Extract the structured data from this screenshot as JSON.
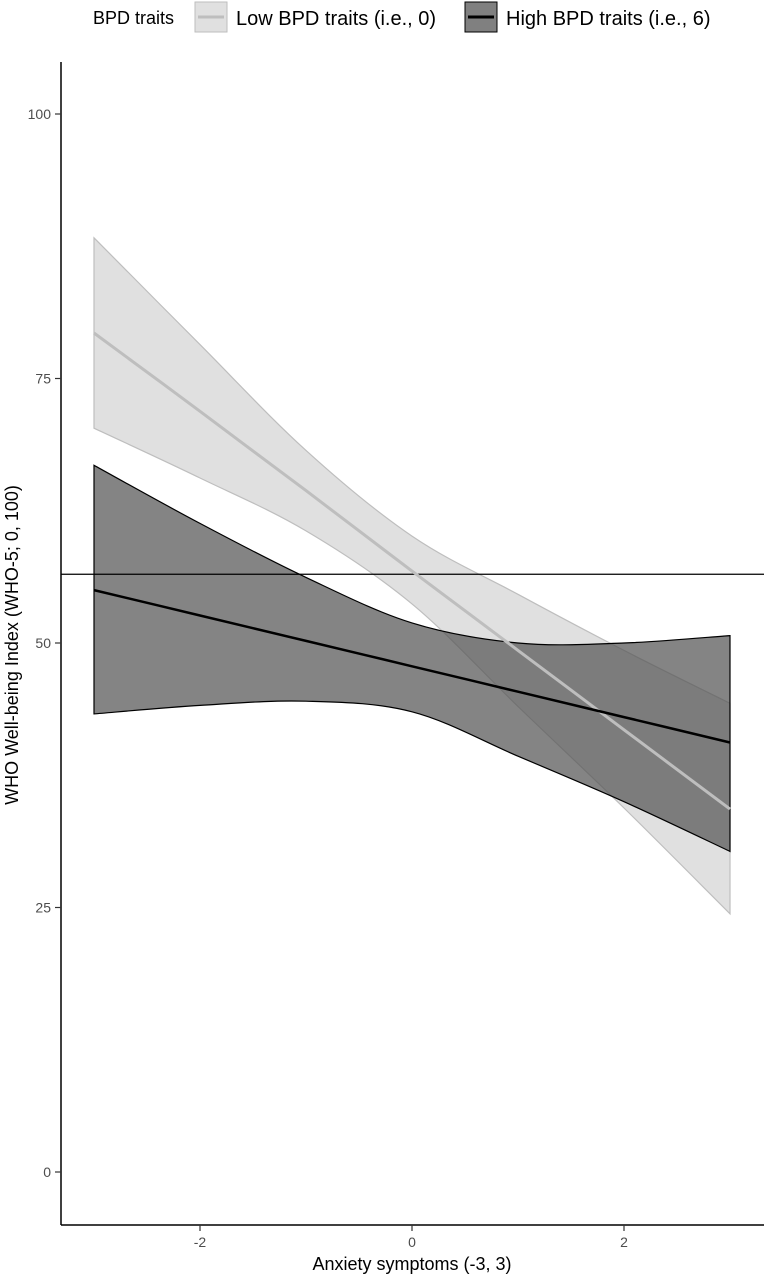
{
  "chart_data": {
    "type": "line",
    "title": "",
    "xlabel": "Anxiety symptoms (-3, 3)",
    "ylabel": "WHO Well-being Index (WHO-5; 0, 100)",
    "xlim": [
      -3.3,
      3.3
    ],
    "ylim": [
      -5,
      105
    ],
    "x_ticks": [
      -2,
      0,
      2
    ],
    "x_tick_labels": [
      "-2",
      "0",
      "2"
    ],
    "y_ticks": [
      0,
      25,
      50,
      75,
      100
    ],
    "y_tick_labels": [
      "0",
      "25",
      "50",
      "75",
      "100"
    ],
    "grid": false,
    "legend": {
      "title": "BPD traits",
      "position": "top"
    },
    "reference_line": {
      "y": 56.5
    },
    "x": [
      -3,
      -2,
      -1,
      0,
      1,
      2,
      3
    ],
    "series": [
      {
        "name": "Low BPD traits (i.e., 0)",
        "color": "#bebebe",
        "fill": "#d3d3d3",
        "values": [
          79.3,
          71.9,
          64.4,
          56.8,
          49.3,
          41.8,
          34.3
        ],
        "lower": [
          70.3,
          65.6,
          60.6,
          53.7,
          44.0,
          34.4,
          24.4
        ],
        "upper": [
          88.3,
          78.2,
          68.2,
          60.1,
          54.6,
          49.3,
          44.3
        ]
      },
      {
        "name": "High BPD traits (i.e., 6)",
        "color": "#000000",
        "fill": "#555555",
        "values": [
          55.0,
          52.6,
          50.2,
          47.8,
          45.4,
          43.0,
          40.6
        ],
        "lower": [
          43.3,
          44.1,
          44.5,
          43.5,
          39.3,
          35.0,
          30.3
        ],
        "upper": [
          66.8,
          61.3,
          56.2,
          51.9,
          50.0,
          50.0,
          50.7
        ]
      }
    ]
  }
}
